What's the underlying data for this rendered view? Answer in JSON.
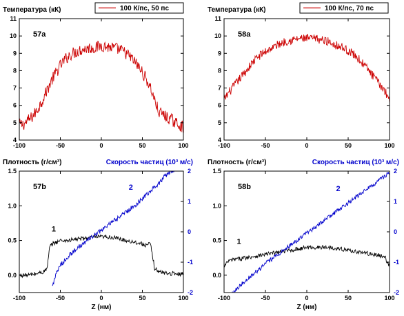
{
  "chart_data": [
    {
      "id": "57a",
      "type": "line",
      "panel_label": "57a",
      "ylabel": "Температура (кК)",
      "xlabel": "",
      "xlim": [
        -100,
        100
      ],
      "ylim": [
        4,
        11
      ],
      "xticks": [
        -100,
        -50,
        0,
        50,
        100
      ],
      "yticks": [
        4,
        5,
        6,
        7,
        8,
        9,
        10,
        11
      ],
      "legend": {
        "label": "100 К/пс, 50 пс",
        "color": "#cc0000",
        "placement": "top-right"
      },
      "series": [
        {
          "name": "100 К/пс, 50 пс",
          "color": "#cc0000",
          "noise": 0.35,
          "x": [
            -100,
            -95,
            -90,
            -85,
            -80,
            -75,
            -70,
            -65,
            -60,
            -55,
            -50,
            -45,
            -40,
            -35,
            -30,
            -25,
            -20,
            -15,
            -10,
            -5,
            0,
            5,
            10,
            15,
            20,
            25,
            30,
            35,
            40,
            45,
            50,
            55,
            60,
            65,
            70,
            75,
            80,
            85,
            90,
            95,
            100
          ],
          "y": [
            4.9,
            4.9,
            5.1,
            5.3,
            5.6,
            6.0,
            6.5,
            7.0,
            7.5,
            7.9,
            8.3,
            8.6,
            8.85,
            9.0,
            9.1,
            9.2,
            9.25,
            9.3,
            9.3,
            9.35,
            9.45,
            9.4,
            9.35,
            9.3,
            9.25,
            9.15,
            9.0,
            8.8,
            8.55,
            8.25,
            7.9,
            7.5,
            7.0,
            6.3,
            5.6,
            5.5,
            5.3,
            5.2,
            5.0,
            4.9,
            4.7
          ]
        }
      ]
    },
    {
      "id": "58a",
      "type": "line",
      "panel_label": "58a",
      "ylabel": "Температура (кК)",
      "xlabel": "",
      "xlim": [
        -100,
        100
      ],
      "ylim": [
        4,
        11
      ],
      "xticks": [
        -100,
        -50,
        0,
        50,
        100
      ],
      "yticks": [
        4,
        5,
        6,
        7,
        8,
        9,
        10,
        11
      ],
      "legend": {
        "label": "100 К/пс, 70 пс",
        "color": "#cc0000",
        "placement": "top-right"
      },
      "series": [
        {
          "name": "100 К/пс, 70 пс",
          "color": "#cc0000",
          "noise": 0.25,
          "x": [
            -100,
            -95,
            -90,
            -85,
            -80,
            -75,
            -70,
            -65,
            -60,
            -55,
            -50,
            -45,
            -40,
            -35,
            -30,
            -25,
            -20,
            -15,
            -10,
            -5,
            0,
            5,
            10,
            15,
            20,
            25,
            30,
            35,
            40,
            45,
            50,
            55,
            60,
            65,
            70,
            75,
            80,
            85,
            90,
            95,
            100
          ],
          "y": [
            6.3,
            6.7,
            7.0,
            7.3,
            7.6,
            7.9,
            8.2,
            8.5,
            8.75,
            8.95,
            9.1,
            9.25,
            9.35,
            9.5,
            9.6,
            9.7,
            9.75,
            9.8,
            9.85,
            9.85,
            9.85,
            9.85,
            9.85,
            9.8,
            9.75,
            9.7,
            9.6,
            9.5,
            9.4,
            9.3,
            9.15,
            9.0,
            8.8,
            8.55,
            8.3,
            8.0,
            7.7,
            7.4,
            7.1,
            6.8,
            6.3
          ]
        }
      ]
    },
    {
      "id": "57b",
      "type": "line",
      "panel_label": "57b",
      "ylabel": "Плотность (г/см³)",
      "ylabel_right": "Скорость частиц (10³ м/с)",
      "xlabel": "Z (нм)",
      "xlim": [
        -100,
        100
      ],
      "ylim": [
        -0.25,
        1.5
      ],
      "ylim_right": [
        -2,
        2
      ],
      "xticks": [
        -100,
        -50,
        0,
        50,
        100
      ],
      "yticks": [
        0.0,
        0.5,
        1.0,
        1.5
      ],
      "yticks_labels": [
        "0.0",
        "0.5",
        "1.0",
        "1.5"
      ],
      "yticks_right": [
        -2,
        -1,
        0,
        1,
        2
      ],
      "series": [
        {
          "name": "1",
          "axis": "left",
          "color": "#000000",
          "noise": 0.03,
          "x": [
            -100,
            -90,
            -80,
            -70,
            -66,
            -63,
            -60,
            -50,
            -40,
            -30,
            -20,
            -10,
            0,
            10,
            20,
            30,
            40,
            50,
            55,
            60,
            62,
            65,
            70,
            80,
            90,
            100
          ],
          "y": [
            0.0,
            0.0,
            0.02,
            0.05,
            0.1,
            0.4,
            0.45,
            0.5,
            0.5,
            0.52,
            0.53,
            0.55,
            0.55,
            0.55,
            0.53,
            0.5,
            0.48,
            0.45,
            0.43,
            0.45,
            0.3,
            0.1,
            0.05,
            0.03,
            0.02,
            0.02
          ]
        },
        {
          "name": "2",
          "axis": "right",
          "color": "#0000cc",
          "noise": 0.08,
          "x": [
            -60,
            -55,
            -50,
            -40,
            -30,
            -20,
            -10,
            0,
            10,
            20,
            30,
            40,
            50,
            60,
            70,
            80,
            85,
            90
          ],
          "y": [
            -1.8,
            -1.4,
            -1.1,
            -0.8,
            -0.55,
            -0.35,
            -0.15,
            0.05,
            0.25,
            0.45,
            0.65,
            0.85,
            1.1,
            1.35,
            1.6,
            1.9,
            2.0,
            2.05
          ]
        }
      ],
      "annotations": [
        {
          "text": "1",
          "x": -58,
          "y": 0.63,
          "color": "#000000"
        },
        {
          "text": "2",
          "x": 36,
          "y": 1.23,
          "color": "#0000cc"
        }
      ]
    },
    {
      "id": "58b",
      "type": "line",
      "panel_label": "58b",
      "ylabel": "Плотность (г/см³)",
      "ylabel_right": "Скорость частиц (10³ м/с)",
      "xlabel": "Z (нм)",
      "xlim": [
        -100,
        100
      ],
      "ylim": [
        -0.25,
        1.5
      ],
      "ylim_right": [
        -2,
        2
      ],
      "xticks": [
        -100,
        -50,
        0,
        50,
        100
      ],
      "yticks": [
        0.0,
        0.5,
        1.0,
        1.5
      ],
      "yticks_labels": [
        "0.0",
        "0.5",
        "1.0",
        "1.5"
      ],
      "yticks_right": [
        -2,
        -1,
        0,
        1,
        2
      ],
      "series": [
        {
          "name": "1",
          "axis": "left",
          "color": "#000000",
          "noise": 0.03,
          "x": [
            -100,
            -95,
            -90,
            -80,
            -70,
            -60,
            -50,
            -40,
            -30,
            -20,
            -10,
            0,
            10,
            20,
            30,
            40,
            50,
            60,
            70,
            80,
            90,
            95,
            100
          ],
          "y": [
            0.12,
            0.2,
            0.22,
            0.24,
            0.26,
            0.28,
            0.3,
            0.32,
            0.34,
            0.36,
            0.38,
            0.4,
            0.4,
            0.4,
            0.4,
            0.38,
            0.36,
            0.34,
            0.32,
            0.3,
            0.28,
            0.25,
            0.12
          ]
        },
        {
          "name": "2",
          "axis": "right",
          "color": "#0000cc",
          "noise": 0.07,
          "x": [
            -90,
            -80,
            -70,
            -60,
            -50,
            -40,
            -30,
            -20,
            -10,
            0,
            10,
            20,
            30,
            40,
            50,
            60,
            70,
            80,
            90,
            95,
            100
          ],
          "y": [
            -2.0,
            -1.75,
            -1.5,
            -1.3,
            -1.05,
            -0.85,
            -0.65,
            -0.45,
            -0.25,
            -0.05,
            0.15,
            0.35,
            0.55,
            0.75,
            0.95,
            1.15,
            1.35,
            1.55,
            1.75,
            1.85,
            1.95
          ]
        }
      ],
      "annotations": [
        {
          "text": "1",
          "x": -82,
          "y": 0.45,
          "color": "#000000"
        },
        {
          "text": "2",
          "x": 38,
          "y": 1.21,
          "color": "#0000cc"
        }
      ]
    }
  ]
}
